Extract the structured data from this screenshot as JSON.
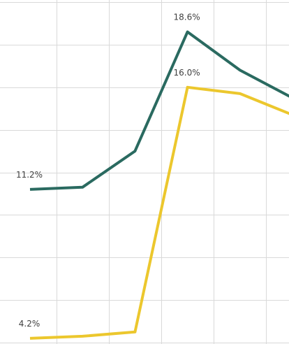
{
  "chart_data": {
    "type": "line",
    "title": "",
    "xlabel": "",
    "ylabel": "",
    "ylim": [
      4.0,
      20.0
    ],
    "grid": true,
    "x_range_visible": [
      0,
      4.9
    ],
    "series": [
      {
        "color": "#2a6a60",
        "x": [
          0,
          1,
          2,
          3,
          4,
          5
        ],
        "values": [
          11.2,
          11.3,
          13.0,
          18.6,
          16.8,
          15.5
        ],
        "labels": [
          "11.2%",
          "",
          "",
          "18.6%",
          "",
          ""
        ]
      },
      {
        "color": "#ecc72d",
        "x": [
          0,
          1,
          2,
          3,
          4,
          5
        ],
        "values": [
          4.2,
          4.3,
          4.5,
          16.0,
          15.7,
          14.7
        ],
        "labels": [
          "4.2%",
          "",
          "",
          "16.0%",
          "",
          ""
        ]
      }
    ]
  }
}
